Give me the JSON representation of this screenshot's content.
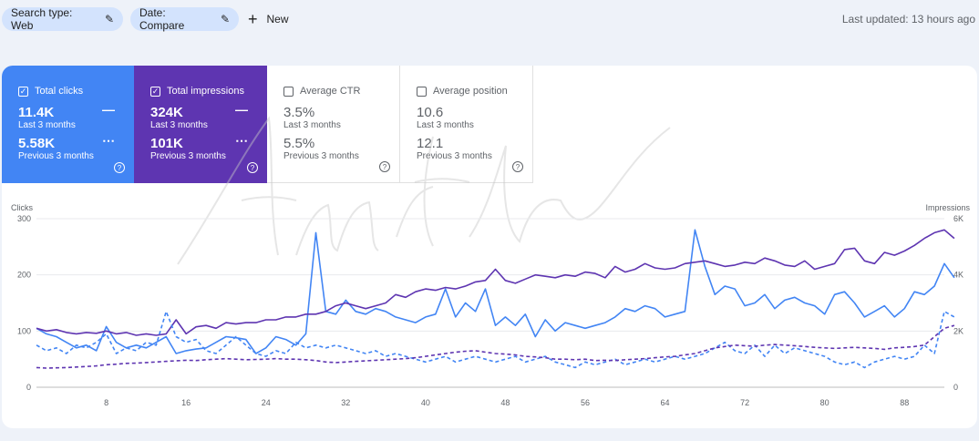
{
  "filters": {
    "search_type": "Search type: Web",
    "date": "Date: Compare",
    "new_label": "New",
    "last_updated": "Last updated: 13 hours ago"
  },
  "metrics": [
    {
      "label": "Total clicks",
      "checked": true,
      "current": "11.4K",
      "current_sub": "Last 3 months",
      "previous": "5.58K",
      "previous_sub": "Previous 3 months",
      "color": "#4285f4"
    },
    {
      "label": "Total impressions",
      "checked": true,
      "current": "324K",
      "current_sub": "Last 3 months",
      "previous": "101K",
      "previous_sub": "Previous 3 months",
      "color": "#5e35b1"
    },
    {
      "label": "Average CTR",
      "checked": false,
      "current": "3.5%",
      "current_sub": "Last 3 months",
      "previous": "5.5%",
      "previous_sub": "Previous 3 months"
    },
    {
      "label": "Average position",
      "checked": false,
      "current": "10.6",
      "current_sub": "Last 3 months",
      "previous": "12.1",
      "previous_sub": "Previous 3 months"
    }
  ],
  "watermark_text": "Amr Elshenawy",
  "chart_data": {
    "type": "line",
    "ylabel_left": "Clicks",
    "ylabel_right": "Impressions",
    "xlim": [
      1,
      92
    ],
    "ylim_left": [
      0,
      300
    ],
    "ylim_right": [
      0,
      6000
    ],
    "xticks": [
      8,
      16,
      24,
      32,
      40,
      48,
      56,
      64,
      72,
      80,
      88
    ],
    "yticks_left": [
      "0",
      "100",
      "200",
      "300"
    ],
    "yticks_right": [
      "0",
      "2K",
      "4K",
      "6K"
    ],
    "grid": true,
    "series": [
      {
        "name": "Total clicks",
        "axis": "left",
        "style": "solid",
        "color": "#4285f4",
        "values": [
          105,
          95,
          90,
          80,
          70,
          75,
          65,
          108,
          80,
          70,
          75,
          70,
          80,
          90,
          60,
          65,
          68,
          70,
          80,
          90,
          88,
          85,
          60,
          70,
          90,
          85,
          75,
          95,
          275,
          135,
          130,
          155,
          135,
          130,
          140,
          135,
          125,
          120,
          115,
          125,
          130,
          175,
          125,
          150,
          135,
          175,
          110,
          125,
          110,
          130,
          90,
          120,
          100,
          115,
          110,
          105,
          110,
          115,
          125,
          140,
          135,
          145,
          140,
          125,
          130,
          135,
          280,
          215,
          165,
          180,
          175,
          145,
          150,
          165,
          140,
          155,
          160,
          150,
          145,
          130,
          165,
          170,
          150,
          125,
          135,
          145,
          125,
          140,
          170,
          165,
          180,
          220,
          195
        ]
      },
      {
        "name": "Total impressions",
        "axis": "right",
        "style": "solid",
        "color": "#5e35b1",
        "values": [
          2100,
          2000,
          2050,
          1950,
          1900,
          1950,
          1920,
          2000,
          1900,
          1950,
          1850,
          1900,
          1850,
          1900,
          2400,
          1900,
          2150,
          2200,
          2100,
          2300,
          2250,
          2300,
          2300,
          2400,
          2400,
          2500,
          2500,
          2600,
          2600,
          2700,
          2900,
          3000,
          2900,
          2800,
          2900,
          3000,
          3300,
          3200,
          3400,
          3500,
          3450,
          3550,
          3500,
          3600,
          3750,
          3800,
          4200,
          3800,
          3700,
          3850,
          4000,
          3950,
          3900,
          4000,
          3950,
          4100,
          4050,
          3900,
          4300,
          4100,
          4200,
          4400,
          4250,
          4200,
          4250,
          4400,
          4450,
          4500,
          4400,
          4300,
          4350,
          4450,
          4400,
          4600,
          4500,
          4350,
          4300,
          4500,
          4200,
          4300,
          4400,
          4900,
          4950,
          4500,
          4400,
          4800,
          4700,
          4850,
          5050,
          5300,
          5500,
          5600,
          5300
        ]
      },
      {
        "name": "Total clicks (previous)",
        "axis": "left",
        "style": "dashed",
        "color": "#4285f4",
        "values": [
          75,
          65,
          70,
          60,
          75,
          70,
          80,
          95,
          60,
          70,
          65,
          80,
          75,
          135,
          90,
          80,
          85,
          65,
          60,
          75,
          90,
          75,
          60,
          55,
          65,
          60,
          80,
          70,
          75,
          70,
          75,
          70,
          65,
          60,
          65,
          55,
          60,
          55,
          50,
          45,
          50,
          55,
          45,
          50,
          55,
          50,
          45,
          50,
          55,
          45,
          50,
          55,
          45,
          40,
          35,
          45,
          40,
          45,
          50,
          40,
          45,
          50,
          45,
          50,
          55,
          50,
          55,
          60,
          70,
          80,
          65,
          60,
          75,
          55,
          75,
          60,
          70,
          65,
          60,
          55,
          45,
          40,
          45,
          35,
          45,
          50,
          55,
          50,
          55,
          75,
          60,
          135,
          125
        ]
      },
      {
        "name": "Total impressions (previous)",
        "axis": "right",
        "style": "dashed",
        "color": "#5e35b1",
        "values": [
          700,
          680,
          690,
          700,
          720,
          740,
          760,
          800,
          820,
          850,
          860,
          880,
          900,
          920,
          940,
          960,
          950,
          980,
          1000,
          1020,
          1000,
          980,
          990,
          1000,
          1020,
          1000,
          1000,
          980,
          950,
          900,
          880,
          900,
          920,
          940,
          960,
          980,
          1000,
          1020,
          1050,
          1100,
          1150,
          1200,
          1250,
          1280,
          1300,
          1250,
          1200,
          1180,
          1150,
          1100,
          1080,
          1050,
          1000,
          1000,
          980,
          1000,
          950,
          960,
          950,
          980,
          1000,
          1020,
          1050,
          1080,
          1100,
          1150,
          1200,
          1300,
          1400,
          1450,
          1500,
          1480,
          1460,
          1500,
          1520,
          1500,
          1480,
          1450,
          1420,
          1400,
          1380,
          1400,
          1420,
          1400,
          1380,
          1350,
          1400,
          1420,
          1450,
          1500,
          1800,
          2100,
          2200
        ]
      }
    ]
  }
}
